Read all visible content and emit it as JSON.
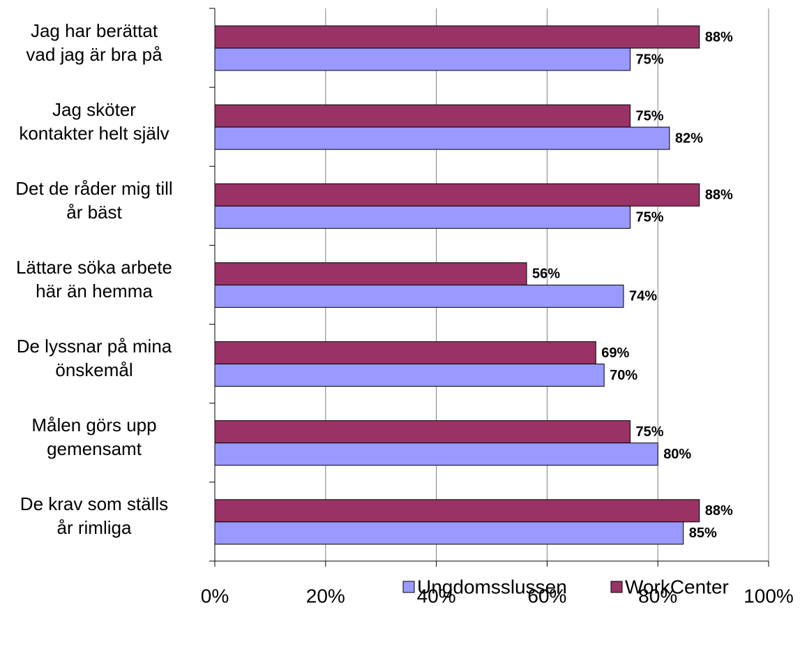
{
  "chart_data": {
    "type": "barh",
    "categories": [
      "Jag har berättat\nvad jag är bra på",
      "Jag sköter\nkontakter helt själv",
      "Det de råder mig till\når bäst",
      "Lättare söka arbete\nhär än hemma",
      "De lyssnar på mina\nönskemål",
      "Målen görs upp\ngemensamt",
      "De krav som ställs\når rimliga"
    ],
    "series": [
      {
        "name": "Ungdomsslussen",
        "color": "#9999ff",
        "values": [
          75,
          82.1,
          75,
          73.8,
          70.3,
          80,
          84.6
        ],
        "value_labels": [
          "75%",
          "82%",
          "75%",
          "74%",
          "70%",
          "80%",
          "85%"
        ]
      },
      {
        "name": "WorkCenter",
        "color": "#993366",
        "values": [
          87.5,
          75,
          87.5,
          56.3,
          68.8,
          75,
          87.5
        ],
        "value_labels": [
          "88%",
          "75%",
          "88%",
          "56%",
          "69%",
          "75%",
          "88%"
        ]
      }
    ],
    "xlim": [
      0,
      100
    ],
    "xticks": [
      {
        "value": 0,
        "label": "0%"
      },
      {
        "value": 20,
        "label": "20%"
      },
      {
        "value": 40,
        "label": "40%"
      },
      {
        "value": 60,
        "label": "60%"
      },
      {
        "value": 80,
        "label": "80%"
      },
      {
        "value": 100,
        "label": "100%"
      }
    ],
    "grid": true
  }
}
